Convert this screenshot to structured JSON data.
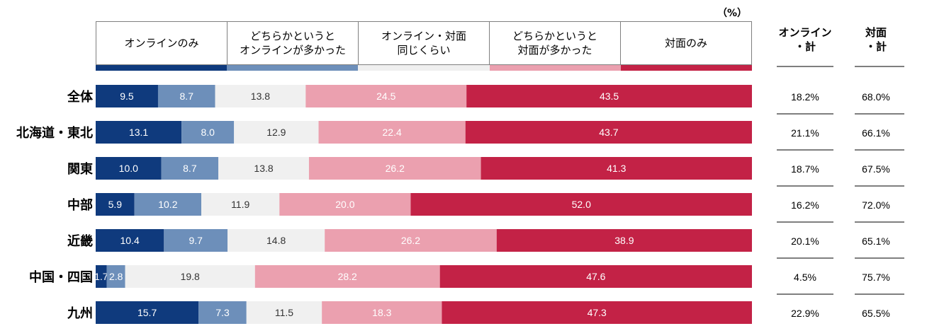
{
  "unit_label": "（%）",
  "legend": [
    {
      "label": "オンラインのみ",
      "color": "#0f3a7d"
    },
    {
      "label": "どちらかというと\nオンラインが多かった",
      "color": "#6d8fba"
    },
    {
      "label": "オンライン・対面\n同じくらい",
      "color": "#f0f0f0"
    },
    {
      "label": "どちらかというと\n対面が多かった",
      "color": "#eba0af"
    },
    {
      "label": "対面のみ",
      "color": "#c32246"
    }
  ],
  "summary_headers": [
    "オンライン\n・計",
    "対面\n・計"
  ],
  "chart_data": {
    "type": "bar",
    "orientation": "horizontal",
    "stacked": true,
    "normalized": true,
    "categories": [
      "全体",
      "北海道・東北",
      "関東",
      "中部",
      "近畿",
      "中国・四国",
      "九州"
    ],
    "series": [
      {
        "name": "オンラインのみ",
        "color": "#0f3a7d",
        "values": [
          9.5,
          13.1,
          10.0,
          5.9,
          10.4,
          1.7,
          15.7
        ]
      },
      {
        "name": "どちらかというと\nオンラインが多かった",
        "color": "#6d8fba",
        "values": [
          8.7,
          8.0,
          8.7,
          10.2,
          9.7,
          2.8,
          7.3
        ]
      },
      {
        "name": "オンライン・対面\n同じくらい",
        "color": "#f0f0f0",
        "values": [
          13.8,
          12.9,
          13.8,
          11.9,
          14.8,
          19.8,
          11.5
        ]
      },
      {
        "name": "どちらかというと\n対面が多かった",
        "color": "#eba0af",
        "values": [
          24.5,
          22.4,
          26.2,
          20.0,
          26.2,
          28.2,
          18.3
        ]
      },
      {
        "name": "対面のみ",
        "color": "#c32246",
        "values": [
          43.5,
          43.7,
          41.3,
          52.0,
          38.9,
          47.6,
          47.3
        ]
      }
    ],
    "label_colors": [
      "#ffffff",
      "#ffffff",
      "#333333",
      "#ffffff",
      "#ffffff"
    ],
    "summary": {
      "online_total": [
        "18.2%",
        "21.1%",
        "18.7%",
        "16.2%",
        "20.1%",
        "4.5%",
        "22.9%"
      ],
      "face_total": [
        "68.0%",
        "66.1%",
        "67.5%",
        "72.0%",
        "65.1%",
        "75.7%",
        "65.5%"
      ]
    }
  }
}
